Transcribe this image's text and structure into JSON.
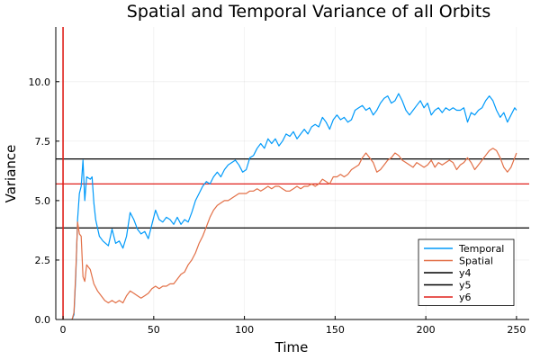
{
  "chart_data": {
    "type": "line",
    "title": "Spatial and Temporal Variance of all Orbits",
    "xlabel": "Time",
    "ylabel": "Variance",
    "xlim": [
      -4,
      257
    ],
    "ylim": [
      0,
      12.3
    ],
    "x_ticks": [
      0,
      50,
      100,
      150,
      200,
      250
    ],
    "y_ticks": [
      0.0,
      2.5,
      5.0,
      7.5,
      10.0
    ],
    "x_tick_labels": [
      "0",
      "50",
      "100",
      "150",
      "200",
      "250"
    ],
    "y_tick_labels": [
      "0.0",
      "2.5",
      "5.0",
      "7.5",
      "10.0"
    ],
    "grid": true,
    "legend_position": "bottom-right",
    "series": [
      {
        "name": "Temporal",
        "color": "#009AFA",
        "kind": "line",
        "points": [
          [
            5,
            0
          ],
          [
            6,
            0.2
          ],
          [
            7,
            1.8
          ],
          [
            8,
            4.2
          ],
          [
            9,
            5.3
          ],
          [
            10,
            5.6
          ],
          [
            11,
            6.7
          ],
          [
            12,
            5.0
          ],
          [
            13,
            6.0
          ],
          [
            15,
            5.9
          ],
          [
            16,
            6.0
          ],
          [
            17,
            4.9
          ],
          [
            18,
            4.2
          ],
          [
            20,
            3.5
          ],
          [
            22,
            3.3
          ],
          [
            25,
            3.1
          ],
          [
            27,
            3.8
          ],
          [
            29,
            3.2
          ],
          [
            31,
            3.3
          ],
          [
            33,
            3.0
          ],
          [
            35,
            3.5
          ],
          [
            37,
            4.5
          ],
          [
            39,
            4.2
          ],
          [
            41,
            3.8
          ],
          [
            43,
            3.6
          ],
          [
            45,
            3.7
          ],
          [
            47,
            3.4
          ],
          [
            49,
            4.0
          ],
          [
            51,
            4.6
          ],
          [
            53,
            4.2
          ],
          [
            55,
            4.1
          ],
          [
            57,
            4.3
          ],
          [
            59,
            4.2
          ],
          [
            61,
            4.0
          ],
          [
            63,
            4.3
          ],
          [
            65,
            4.0
          ],
          [
            67,
            4.2
          ],
          [
            69,
            4.1
          ],
          [
            71,
            4.5
          ],
          [
            73,
            5.0
          ],
          [
            75,
            5.3
          ],
          [
            77,
            5.6
          ],
          [
            79,
            5.8
          ],
          [
            81,
            5.7
          ],
          [
            83,
            6.0
          ],
          [
            85,
            6.2
          ],
          [
            87,
            6.0
          ],
          [
            89,
            6.3
          ],
          [
            91,
            6.5
          ],
          [
            93,
            6.6
          ],
          [
            95,
            6.7
          ],
          [
            97,
            6.5
          ],
          [
            99,
            6.2
          ],
          [
            101,
            6.3
          ],
          [
            103,
            6.8
          ],
          [
            105,
            6.9
          ],
          [
            107,
            7.2
          ],
          [
            109,
            7.4
          ],
          [
            111,
            7.2
          ],
          [
            113,
            7.6
          ],
          [
            115,
            7.4
          ],
          [
            117,
            7.6
          ],
          [
            119,
            7.3
          ],
          [
            121,
            7.5
          ],
          [
            123,
            7.8
          ],
          [
            125,
            7.7
          ],
          [
            127,
            7.9
          ],
          [
            129,
            7.6
          ],
          [
            131,
            7.8
          ],
          [
            133,
            8.0
          ],
          [
            135,
            7.8
          ],
          [
            137,
            8.1
          ],
          [
            139,
            8.2
          ],
          [
            141,
            8.1
          ],
          [
            143,
            8.5
          ],
          [
            145,
            8.3
          ],
          [
            147,
            8.0
          ],
          [
            149,
            8.4
          ],
          [
            151,
            8.6
          ],
          [
            153,
            8.4
          ],
          [
            155,
            8.5
          ],
          [
            157,
            8.3
          ],
          [
            159,
            8.4
          ],
          [
            161,
            8.8
          ],
          [
            163,
            8.9
          ],
          [
            165,
            9.0
          ],
          [
            167,
            8.8
          ],
          [
            169,
            8.9
          ],
          [
            171,
            8.6
          ],
          [
            173,
            8.8
          ],
          [
            175,
            9.1
          ],
          [
            177,
            9.3
          ],
          [
            179,
            9.4
          ],
          [
            181,
            9.1
          ],
          [
            183,
            9.2
          ],
          [
            185,
            9.5
          ],
          [
            187,
            9.2
          ],
          [
            189,
            8.8
          ],
          [
            191,
            8.6
          ],
          [
            193,
            8.8
          ],
          [
            195,
            9.0
          ],
          [
            197,
            9.2
          ],
          [
            199,
            8.9
          ],
          [
            201,
            9.1
          ],
          [
            203,
            8.6
          ],
          [
            205,
            8.8
          ],
          [
            207,
            8.9
          ],
          [
            209,
            8.7
          ],
          [
            211,
            8.9
          ],
          [
            213,
            8.8
          ],
          [
            215,
            8.9
          ],
          [
            217,
            8.8
          ],
          [
            219,
            8.8
          ],
          [
            221,
            8.9
          ],
          [
            223,
            8.3
          ],
          [
            225,
            8.7
          ],
          [
            227,
            8.6
          ],
          [
            229,
            8.8
          ],
          [
            231,
            8.9
          ],
          [
            233,
            9.2
          ],
          [
            235,
            9.4
          ],
          [
            237,
            9.2
          ],
          [
            239,
            8.8
          ],
          [
            241,
            8.5
          ],
          [
            243,
            8.7
          ],
          [
            245,
            8.3
          ],
          [
            247,
            8.6
          ],
          [
            249,
            8.9
          ],
          [
            250,
            8.8
          ]
        ]
      },
      {
        "name": "Spatial",
        "color": "#E26F46",
        "kind": "line",
        "points": [
          [
            5,
            0
          ],
          [
            6,
            0.3
          ],
          [
            7,
            2.0
          ],
          [
            8,
            4.1
          ],
          [
            9,
            3.6
          ],
          [
            10,
            3.5
          ],
          [
            11,
            1.8
          ],
          [
            12,
            1.6
          ],
          [
            13,
            2.3
          ],
          [
            15,
            2.1
          ],
          [
            17,
            1.5
          ],
          [
            19,
            1.2
          ],
          [
            21,
            1.0
          ],
          [
            23,
            0.8
          ],
          [
            25,
            0.7
          ],
          [
            27,
            0.8
          ],
          [
            29,
            0.7
          ],
          [
            31,
            0.8
          ],
          [
            33,
            0.7
          ],
          [
            35,
            1.0
          ],
          [
            37,
            1.2
          ],
          [
            39,
            1.1
          ],
          [
            41,
            1.0
          ],
          [
            43,
            0.9
          ],
          [
            45,
            1.0
          ],
          [
            47,
            1.1
          ],
          [
            49,
            1.3
          ],
          [
            51,
            1.4
          ],
          [
            53,
            1.3
          ],
          [
            55,
            1.4
          ],
          [
            57,
            1.4
          ],
          [
            59,
            1.5
          ],
          [
            61,
            1.5
          ],
          [
            63,
            1.7
          ],
          [
            65,
            1.9
          ],
          [
            67,
            2.0
          ],
          [
            69,
            2.3
          ],
          [
            71,
            2.5
          ],
          [
            73,
            2.8
          ],
          [
            75,
            3.2
          ],
          [
            77,
            3.5
          ],
          [
            79,
            3.9
          ],
          [
            81,
            4.3
          ],
          [
            83,
            4.6
          ],
          [
            85,
            4.8
          ],
          [
            87,
            4.9
          ],
          [
            89,
            5.0
          ],
          [
            91,
            5.0
          ],
          [
            93,
            5.1
          ],
          [
            95,
            5.2
          ],
          [
            97,
            5.3
          ],
          [
            99,
            5.3
          ],
          [
            101,
            5.3
          ],
          [
            103,
            5.4
          ],
          [
            105,
            5.4
          ],
          [
            107,
            5.5
          ],
          [
            109,
            5.4
          ],
          [
            111,
            5.5
          ],
          [
            113,
            5.6
          ],
          [
            115,
            5.5
          ],
          [
            117,
            5.6
          ],
          [
            119,
            5.6
          ],
          [
            121,
            5.5
          ],
          [
            123,
            5.4
          ],
          [
            125,
            5.4
          ],
          [
            127,
            5.5
          ],
          [
            129,
            5.6
          ],
          [
            131,
            5.5
          ],
          [
            133,
            5.6
          ],
          [
            135,
            5.6
          ],
          [
            137,
            5.7
          ],
          [
            139,
            5.6
          ],
          [
            141,
            5.7
          ],
          [
            143,
            5.9
          ],
          [
            145,
            5.8
          ],
          [
            147,
            5.7
          ],
          [
            149,
            6.0
          ],
          [
            151,
            6.0
          ],
          [
            153,
            6.1
          ],
          [
            155,
            6.0
          ],
          [
            157,
            6.1
          ],
          [
            159,
            6.3
          ],
          [
            161,
            6.4
          ],
          [
            163,
            6.5
          ],
          [
            165,
            6.8
          ],
          [
            167,
            7.0
          ],
          [
            169,
            6.8
          ],
          [
            171,
            6.6
          ],
          [
            173,
            6.2
          ],
          [
            175,
            6.3
          ],
          [
            177,
            6.5
          ],
          [
            179,
            6.7
          ],
          [
            181,
            6.8
          ],
          [
            183,
            7.0
          ],
          [
            185,
            6.9
          ],
          [
            187,
            6.7
          ],
          [
            189,
            6.6
          ],
          [
            191,
            6.5
          ],
          [
            193,
            6.4
          ],
          [
            195,
            6.6
          ],
          [
            197,
            6.5
          ],
          [
            199,
            6.4
          ],
          [
            201,
            6.5
          ],
          [
            203,
            6.7
          ],
          [
            205,
            6.4
          ],
          [
            207,
            6.6
          ],
          [
            209,
            6.5
          ],
          [
            211,
            6.6
          ],
          [
            213,
            6.7
          ],
          [
            215,
            6.6
          ],
          [
            217,
            6.3
          ],
          [
            219,
            6.5
          ],
          [
            221,
            6.6
          ],
          [
            223,
            6.8
          ],
          [
            225,
            6.6
          ],
          [
            227,
            6.3
          ],
          [
            229,
            6.5
          ],
          [
            231,
            6.7
          ],
          [
            233,
            6.9
          ],
          [
            235,
            7.1
          ],
          [
            237,
            7.2
          ],
          [
            239,
            7.1
          ],
          [
            241,
            6.8
          ],
          [
            243,
            6.4
          ],
          [
            245,
            6.2
          ],
          [
            247,
            6.4
          ],
          [
            249,
            6.8
          ],
          [
            250,
            7.0
          ]
        ]
      },
      {
        "name": "y4",
        "color": "#000000",
        "kind": "hline",
        "value": 6.75
      },
      {
        "name": "y5",
        "color": "#000000",
        "kind": "hline",
        "value": 3.85
      },
      {
        "name": "y6",
        "color": "#E0201B",
        "kind": "hline",
        "value": 5.7
      },
      {
        "name": "",
        "color": "#E0201B",
        "kind": "vline",
        "value": 0
      }
    ]
  }
}
